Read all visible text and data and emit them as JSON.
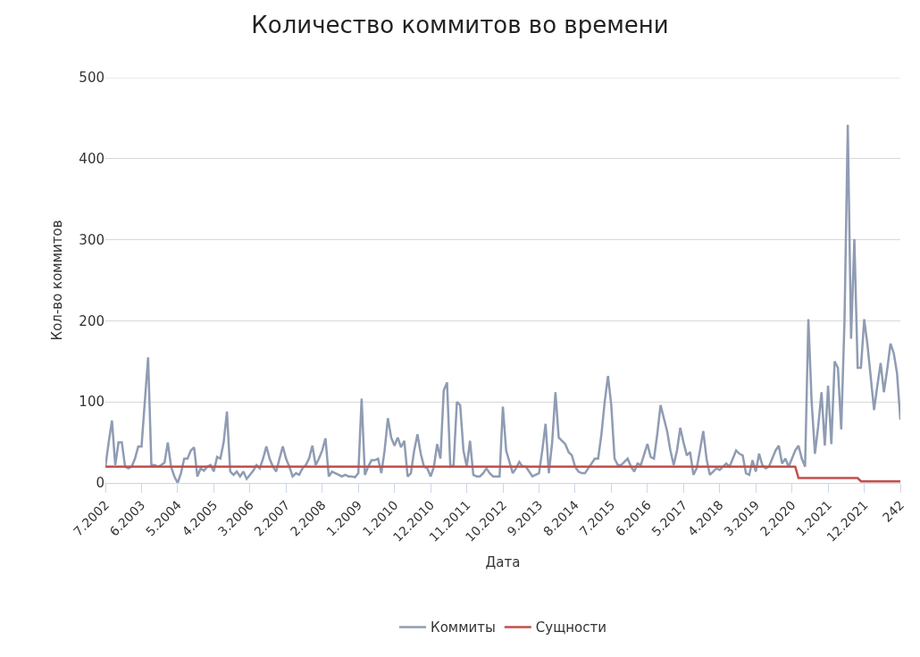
{
  "chart_data": {
    "type": "line",
    "title": "Количество коммитов во времени",
    "xlabel": "Дата",
    "ylabel": "Кол-во коммитов",
    "categories": [
      "7.2002",
      null,
      null,
      null,
      null,
      null,
      null,
      null,
      null,
      null,
      null,
      "6.2003",
      null,
      null,
      null,
      null,
      null,
      null,
      null,
      null,
      null,
      null,
      "5.2004",
      null,
      null,
      null,
      null,
      null,
      null,
      null,
      null,
      null,
      null,
      "4.2005",
      null,
      null,
      null,
      null,
      null,
      null,
      null,
      null,
      null,
      null,
      "3.2006",
      null,
      null,
      null,
      null,
      null,
      null,
      null,
      null,
      null,
      null,
      "2.2007",
      null,
      null,
      null,
      null,
      null,
      null,
      null,
      null,
      null,
      null,
      "2.2008",
      null,
      null,
      null,
      null,
      null,
      null,
      null,
      null,
      null,
      null,
      "1.2009",
      null,
      null,
      null,
      null,
      null,
      null,
      null,
      null,
      null,
      null,
      "1.2010",
      null,
      null,
      null,
      null,
      null,
      null,
      null,
      null,
      null,
      null,
      "12.2010",
      null,
      null,
      null,
      null,
      null,
      null,
      null,
      null,
      null,
      null,
      "11.2011",
      null,
      null,
      null,
      null,
      null,
      null,
      null,
      null,
      null,
      null,
      "10.2012",
      null,
      null,
      null,
      null,
      null,
      null,
      null,
      null,
      null,
      null,
      "9.2013",
      null,
      null,
      null,
      null,
      null,
      null,
      null,
      null,
      null,
      null,
      "8.2014",
      null,
      null,
      null,
      null,
      null,
      null,
      null,
      null,
      null,
      null,
      "7.2015",
      null,
      null,
      null,
      null,
      null,
      null,
      null,
      null,
      null,
      null,
      "6.2016",
      null,
      null,
      null,
      null,
      null,
      null,
      null,
      null,
      null,
      null,
      "5.2017",
      null,
      null,
      null,
      null,
      null,
      null,
      null,
      null,
      null,
      null,
      "4.2018",
      null,
      null,
      null,
      null,
      null,
      null,
      null,
      null,
      null,
      null,
      "3.2019",
      null,
      null,
      null,
      null,
      null,
      null,
      null,
      null,
      null,
      null,
      "2.2020",
      null,
      null,
      null,
      null,
      null,
      null,
      null,
      null,
      null,
      null,
      "1.2021",
      null,
      null,
      null,
      null,
      null,
      null,
      null,
      null,
      null,
      null,
      "12.2021",
      null,
      null,
      null,
      null,
      null,
      null,
      null,
      null,
      null,
      null,
      "242"
    ],
    "series": [
      {
        "name": "Коммиты",
        "color": "#8f9cb3",
        "values": [
          20,
          50,
          77,
          22,
          50,
          50,
          20,
          18,
          20,
          30,
          45,
          45,
          100,
          155,
          22,
          22,
          20,
          22,
          25,
          50,
          20,
          8,
          0,
          12,
          30,
          30,
          40,
          44,
          8,
          18,
          15,
          20,
          22,
          14,
          32,
          30,
          50,
          88,
          14,
          10,
          14,
          8,
          14,
          5,
          10,
          15,
          22,
          18,
          30,
          45,
          30,
          20,
          14,
          30,
          45,
          30,
          20,
          8,
          12,
          10,
          18,
          22,
          30,
          46,
          22,
          30,
          40,
          55,
          8,
          14,
          12,
          10,
          8,
          10,
          8,
          8,
          7,
          12,
          104,
          10,
          20,
          28,
          28,
          30,
          12,
          40,
          80,
          56,
          46,
          56,
          44,
          52,
          8,
          12,
          40,
          60,
          36,
          20,
          18,
          8,
          20,
          48,
          30,
          114,
          124,
          20,
          22,
          100,
          96,
          40,
          20,
          52,
          10,
          8,
          8,
          12,
          18,
          12,
          8,
          8,
          8,
          94,
          40,
          26,
          12,
          18,
          26,
          20,
          20,
          14,
          8,
          10,
          12,
          40,
          73,
          12,
          50,
          112,
          56,
          52,
          48,
          38,
          34,
          20,
          14,
          12,
          12,
          18,
          24,
          30,
          30,
          60,
          100,
          132,
          96,
          30,
          22,
          22,
          26,
          30,
          20,
          14,
          24,
          22,
          35,
          48,
          32,
          30,
          60,
          96,
          80,
          64,
          40,
          22,
          40,
          68,
          50,
          34,
          38,
          10,
          18,
          40,
          64,
          30,
          10,
          14,
          18,
          16,
          20,
          24,
          20,
          30,
          40,
          36,
          34,
          12,
          10,
          28,
          14,
          36,
          22,
          18,
          20,
          30,
          40,
          46,
          24,
          30,
          20,
          30,
          40,
          46,
          30,
          20,
          202,
          100,
          36,
          70,
          112,
          46,
          120,
          48,
          150,
          142,
          66,
          200,
          442,
          178,
          301,
          142,
          142,
          202,
          170,
          130,
          90,
          120,
          148,
          112,
          140,
          172,
          160,
          135,
          78
        ]
      },
      {
        "name": "Сущности",
        "color": "#c0504d",
        "values": [
          20,
          20,
          20,
          20,
          20,
          20,
          20,
          20,
          20,
          20,
          20,
          20,
          20,
          20,
          20,
          20,
          20,
          20,
          20,
          20,
          20,
          20,
          20,
          20,
          20,
          20,
          20,
          20,
          20,
          20,
          20,
          20,
          20,
          20,
          20,
          20,
          20,
          20,
          20,
          20,
          20,
          20,
          20,
          20,
          20,
          20,
          20,
          20,
          20,
          20,
          20,
          20,
          20,
          20,
          20,
          20,
          20,
          20,
          20,
          20,
          20,
          20,
          20,
          20,
          20,
          20,
          20,
          20,
          20,
          20,
          20,
          20,
          20,
          20,
          20,
          20,
          20,
          20,
          20,
          20,
          20,
          20,
          20,
          20,
          20,
          20,
          20,
          20,
          20,
          20,
          20,
          20,
          20,
          20,
          20,
          20,
          20,
          20,
          20,
          20,
          20,
          20,
          20,
          20,
          20,
          20,
          20,
          20,
          20,
          20,
          20,
          20,
          20,
          20,
          20,
          20,
          20,
          20,
          20,
          20,
          20,
          20,
          20,
          20,
          20,
          20,
          20,
          20,
          20,
          20,
          20,
          20,
          20,
          20,
          20,
          20,
          20,
          20,
          20,
          20,
          20,
          20,
          20,
          20,
          20,
          20,
          20,
          20,
          20,
          20,
          20,
          20,
          20,
          20,
          20,
          20,
          20,
          20,
          20,
          20,
          20,
          20,
          20,
          20,
          20,
          20,
          20,
          20,
          20,
          20,
          20,
          20,
          20,
          20,
          20,
          20,
          20,
          20,
          20,
          20,
          20,
          20,
          20,
          20,
          20,
          20,
          20,
          20,
          20,
          20,
          20,
          20,
          20,
          20,
          20,
          20,
          20,
          20,
          20,
          20,
          20,
          20,
          20,
          20,
          20,
          20,
          20,
          20,
          20,
          20,
          20,
          6,
          6,
          6,
          6,
          6,
          6,
          6,
          6,
          6,
          6,
          6,
          6,
          6,
          6,
          6,
          6,
          6,
          6,
          6,
          2,
          2,
          2,
          2,
          2,
          2,
          2,
          2,
          2,
          2,
          2,
          2,
          2
        ]
      }
    ],
    "ylim": [
      0,
      500
    ],
    "yticks": [
      0,
      100,
      200,
      300,
      400,
      500
    ],
    "grid": "y",
    "legend": "bottom",
    "marker": "none",
    "line_style": "solid"
  }
}
